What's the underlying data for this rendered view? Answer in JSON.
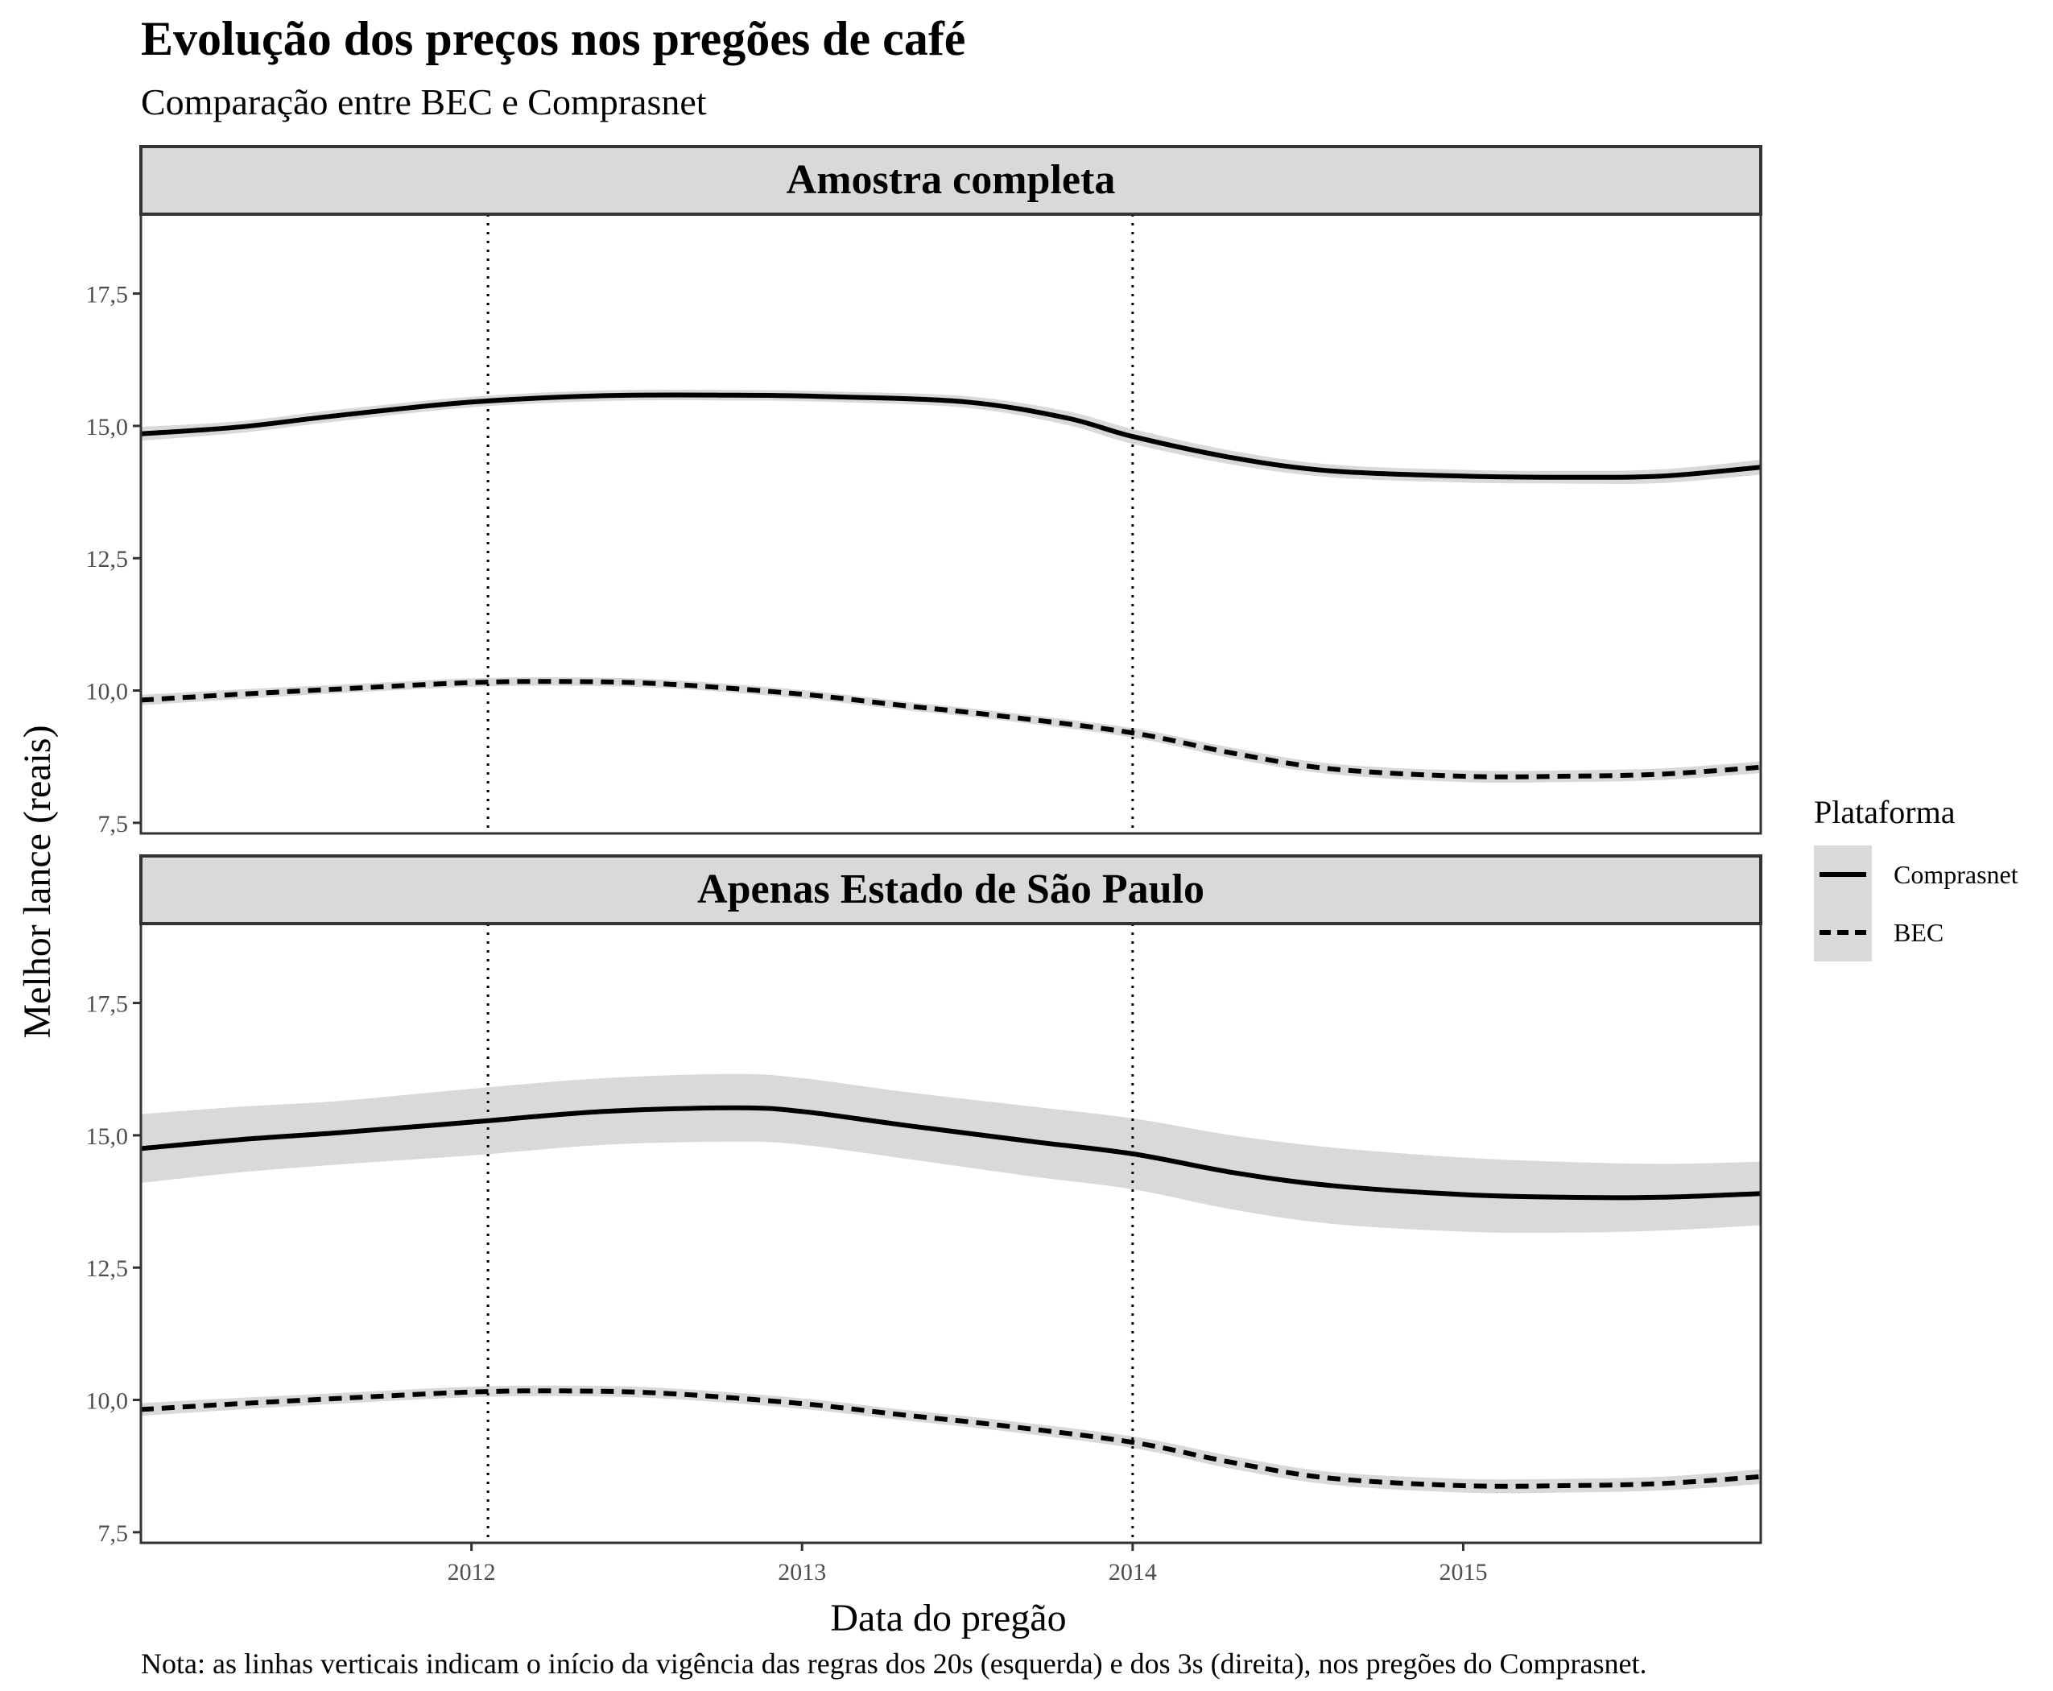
{
  "title": "Evolução dos preços nos pregões de café",
  "subtitle": "Comparação entre BEC e Comprasnet",
  "xlabel": "Data do pregão",
  "ylabel": "Melhor lance (reais)",
  "note": "Nota: as linhas verticais indicam o início da vigência das regras dos 20s (esquerda) e dos 3s (direita), nos pregões do Comprasnet.",
  "legend": {
    "title": "Plataforma",
    "items": [
      {
        "label": "Comprasnet",
        "linestyle": "solid"
      },
      {
        "label": "BEC",
        "linestyle": "dashed"
      }
    ]
  },
  "colors": {
    "line": "#000000",
    "ribbon": "#d9d9d9",
    "strip_fill": "#d9d9d9",
    "panel_border": "#333333",
    "tick_text": "#4d4d4d"
  },
  "chart_data": {
    "type": "line",
    "x_range": [
      2011.0,
      2015.9
    ],
    "y_range": [
      7.3,
      19.0
    ],
    "x_ticks": [
      2012,
      2013,
      2014,
      2015
    ],
    "x_tick_labels": [
      "2012",
      "2013",
      "2014",
      "2015"
    ],
    "y_ticks": [
      7.5,
      10.0,
      12.5,
      15.0,
      17.5
    ],
    "y_tick_labels": [
      "7,5",
      "10,0",
      "12,5",
      "15,0",
      "17,5"
    ],
    "vlines": [
      2012.05,
      2014.0
    ],
    "grid": false,
    "legend_position": "right",
    "panels": [
      {
        "label": "Amostra completa",
        "series": [
          {
            "name": "Comprasnet",
            "linestyle": "solid",
            "x": [
              2011.0,
              2011.3,
              2011.6,
              2012.0,
              2012.4,
              2012.8,
              2013.1,
              2013.5,
              2013.8,
              2014.0,
              2014.3,
              2014.6,
              2015.0,
              2015.3,
              2015.6,
              2015.9
            ],
            "y": [
              14.85,
              14.98,
              15.2,
              15.45,
              15.57,
              15.58,
              15.55,
              15.45,
              15.15,
              14.8,
              14.4,
              14.15,
              14.05,
              14.03,
              14.05,
              14.22
            ],
            "lower": [
              14.72,
              14.87,
              15.09,
              15.35,
              15.47,
              15.48,
              15.45,
              15.34,
              15.02,
              14.66,
              14.27,
              14.03,
              13.93,
              13.91,
              13.92,
              14.08
            ],
            "upper": [
              14.98,
              15.09,
              15.31,
              15.55,
              15.67,
              15.68,
              15.65,
              15.56,
              15.28,
              14.94,
              14.53,
              14.27,
              14.17,
              14.15,
              14.18,
              14.36
            ]
          },
          {
            "name": "BEC",
            "linestyle": "dashed",
            "x": [
              2011.0,
              2011.3,
              2011.6,
              2012.0,
              2012.3,
              2012.6,
              2013.0,
              2013.3,
              2013.6,
              2014.0,
              2014.3,
              2014.6,
              2015.0,
              2015.3,
              2015.6,
              2015.9
            ],
            "y": [
              9.82,
              9.93,
              10.03,
              10.15,
              10.17,
              10.12,
              9.93,
              9.72,
              9.52,
              9.2,
              8.82,
              8.52,
              8.38,
              8.38,
              8.42,
              8.55
            ],
            "lower": [
              9.72,
              9.84,
              9.95,
              10.07,
              10.09,
              10.04,
              9.85,
              9.64,
              9.44,
              9.11,
              8.72,
              8.42,
              8.27,
              8.27,
              8.31,
              8.44
            ],
            "upper": [
              9.92,
              10.02,
              10.11,
              10.23,
              10.25,
              10.2,
              10.01,
              9.8,
              9.6,
              9.29,
              8.92,
              8.62,
              8.49,
              8.49,
              8.53,
              8.66
            ]
          }
        ]
      },
      {
        "label": "Apenas Estado de São Paulo",
        "series": [
          {
            "name": "Comprasnet",
            "linestyle": "solid",
            "x": [
              2011.0,
              2011.3,
              2011.6,
              2012.0,
              2012.4,
              2012.8,
              2013.0,
              2013.3,
              2013.7,
              2014.0,
              2014.3,
              2014.6,
              2015.0,
              2015.3,
              2015.6,
              2015.9
            ],
            "y": [
              14.75,
              14.92,
              15.05,
              15.25,
              15.45,
              15.52,
              15.45,
              15.2,
              14.88,
              14.65,
              14.3,
              14.05,
              13.88,
              13.83,
              13.83,
              13.9
            ],
            "lower": [
              14.1,
              14.3,
              14.45,
              14.62,
              14.82,
              14.88,
              14.82,
              14.57,
              14.22,
              13.98,
              13.6,
              13.33,
              13.18,
              13.16,
              13.2,
              13.3
            ],
            "upper": [
              15.4,
              15.54,
              15.65,
              15.88,
              16.08,
              16.16,
              16.08,
              15.83,
              15.54,
              15.32,
              15.0,
              14.77,
              14.58,
              14.5,
              14.46,
              14.5
            ]
          },
          {
            "name": "BEC",
            "linestyle": "dashed",
            "x": [
              2011.0,
              2011.3,
              2011.6,
              2012.0,
              2012.3,
              2012.6,
              2013.0,
              2013.3,
              2013.6,
              2014.0,
              2014.3,
              2014.6,
              2015.0,
              2015.3,
              2015.6,
              2015.9
            ],
            "y": [
              9.82,
              9.93,
              10.03,
              10.15,
              10.17,
              10.12,
              9.93,
              9.72,
              9.52,
              9.2,
              8.82,
              8.52,
              8.38,
              8.38,
              8.42,
              8.55
            ],
            "lower": [
              9.7,
              9.82,
              9.93,
              10.05,
              10.07,
              10.02,
              9.83,
              9.62,
              9.42,
              9.09,
              8.7,
              8.4,
              8.25,
              8.25,
              8.29,
              8.41
            ],
            "upper": [
              9.94,
              10.04,
              10.13,
              10.25,
              10.27,
              10.22,
              10.03,
              9.82,
              9.62,
              9.31,
              8.94,
              8.64,
              8.51,
              8.51,
              8.55,
              8.69
            ]
          }
        ]
      }
    ]
  }
}
